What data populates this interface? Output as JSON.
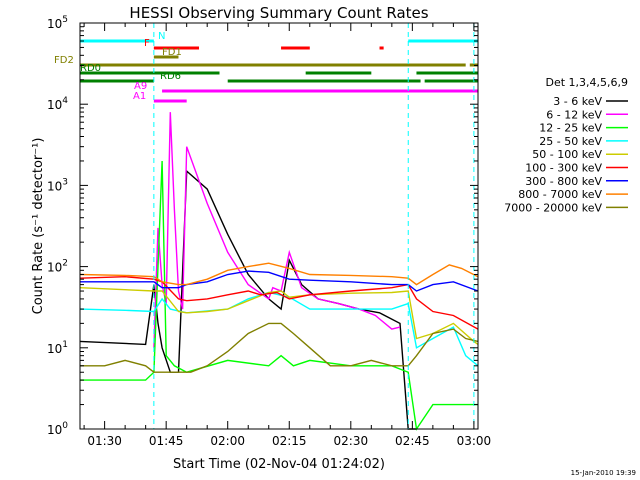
{
  "chart_data": {
    "type": "line",
    "title": "HESSI Observing Summary Count Rates",
    "xlabel": "Start Time (02-Nov-04 01:24:02)",
    "ylabel": "Count Rate (s⁻¹ detector⁻¹)",
    "yscale": "log",
    "ylim": [
      1,
      100000
    ],
    "xlim_minutes": [
      84,
      181
    ],
    "x_ticks": [
      {
        "t": 90,
        "label": "01:30"
      },
      {
        "t": 105,
        "label": "01:45"
      },
      {
        "t": 120,
        "label": "02:00"
      },
      {
        "t": 135,
        "label": "02:15"
      },
      {
        "t": 150,
        "label": "02:30"
      },
      {
        "t": 165,
        "label": "02:45"
      },
      {
        "t": 180,
        "label": "03:00"
      }
    ],
    "y_ticks": [
      {
        "v": 1,
        "base": "10",
        "exp": "0"
      },
      {
        "v": 10,
        "base": "10",
        "exp": "1"
      },
      {
        "v": 100,
        "base": "10",
        "exp": "2"
      },
      {
        "v": 1000,
        "base": "10",
        "exp": "3"
      },
      {
        "v": 10000,
        "base": "10",
        "exp": "4"
      },
      {
        "v": 100000,
        "base": "10",
        "exp": "5"
      }
    ],
    "legend_title": "Det 1,3,4,5,6,9",
    "legend_position": "right",
    "grid": false,
    "series": [
      {
        "name": "3 - 6 keV",
        "color": "#000000",
        "points": [
          [
            84,
            12
          ],
          [
            100,
            11
          ],
          [
            102,
            60
          ],
          [
            103,
            20
          ],
          [
            104,
            10
          ],
          [
            106,
            5
          ],
          [
            108,
            5
          ],
          [
            110,
            1500
          ],
          [
            115,
            900
          ],
          [
            120,
            250
          ],
          [
            125,
            80
          ],
          [
            130,
            40
          ],
          [
            133,
            30
          ],
          [
            135,
            120
          ],
          [
            138,
            60
          ],
          [
            142,
            40
          ],
          [
            147,
            35
          ],
          [
            152,
            30
          ],
          [
            157,
            27
          ],
          [
            162,
            20
          ],
          [
            164,
            1
          ],
          [
            166,
            1
          ]
        ]
      },
      {
        "name": "6 - 12 keV",
        "color": "#ff00ff",
        "points": [
          [
            102,
            10
          ],
          [
            103,
            300
          ],
          [
            104,
            60
          ],
          [
            105,
            35
          ],
          [
            106,
            8000
          ],
          [
            107,
            500
          ],
          [
            108,
            50
          ],
          [
            109,
            30
          ],
          [
            110,
            3000
          ],
          [
            115,
            600
          ],
          [
            120,
            150
          ],
          [
            125,
            60
          ],
          [
            130,
            40
          ],
          [
            131,
            55
          ],
          [
            133,
            50
          ],
          [
            135,
            150
          ],
          [
            138,
            55
          ],
          [
            142,
            40
          ],
          [
            147,
            35
          ],
          [
            152,
            30
          ],
          [
            156,
            25
          ],
          [
            160,
            17
          ],
          [
            162,
            18
          ]
        ]
      },
      {
        "name": "12 - 25 keV",
        "color": "#00ff00",
        "points": [
          [
            84,
            4
          ],
          [
            95,
            4
          ],
          [
            100,
            4
          ],
          [
            102,
            5
          ],
          [
            104,
            2000
          ],
          [
            105,
            8
          ],
          [
            107,
            6
          ],
          [
            110,
            5
          ],
          [
            120,
            7
          ],
          [
            130,
            6
          ],
          [
            133,
            8
          ],
          [
            136,
            6
          ],
          [
            140,
            7
          ],
          [
            150,
            6
          ],
          [
            160,
            6
          ],
          [
            164,
            5
          ],
          [
            166,
            1
          ],
          [
            170,
            2
          ],
          [
            175,
            2
          ],
          [
            181,
            2
          ]
        ]
      },
      {
        "name": "25 - 50 keV",
        "color": "#00ffff",
        "points": [
          [
            84,
            30
          ],
          [
            95,
            29
          ],
          [
            102,
            28
          ],
          [
            104,
            40
          ],
          [
            106,
            30
          ],
          [
            110,
            27
          ],
          [
            120,
            30
          ],
          [
            125,
            40
          ],
          [
            130,
            48
          ],
          [
            135,
            42
          ],
          [
            140,
            30
          ],
          [
            150,
            30
          ],
          [
            160,
            30
          ],
          [
            164,
            35
          ],
          [
            166,
            10
          ],
          [
            170,
            13
          ],
          [
            175,
            18
          ],
          [
            178,
            8
          ],
          [
            181,
            6
          ]
        ]
      },
      {
        "name": "50 - 100 keV",
        "color": "#cccc00",
        "points": [
          [
            84,
            55
          ],
          [
            95,
            52
          ],
          [
            102,
            50
          ],
          [
            104,
            50
          ],
          [
            108,
            28
          ],
          [
            110,
            27
          ],
          [
            115,
            28
          ],
          [
            120,
            30
          ],
          [
            125,
            38
          ],
          [
            130,
            48
          ],
          [
            133,
            50
          ],
          [
            135,
            42
          ],
          [
            140,
            45
          ],
          [
            150,
            47
          ],
          [
            160,
            48
          ],
          [
            164,
            50
          ],
          [
            166,
            13
          ],
          [
            170,
            15
          ],
          [
            175,
            20
          ],
          [
            180,
            12
          ],
          [
            181,
            11
          ]
        ]
      },
      {
        "name": "100 - 300 keV",
        "color": "#ff0000",
        "points": [
          [
            84,
            72
          ],
          [
            95,
            75
          ],
          [
            102,
            70
          ],
          [
            104,
            65
          ],
          [
            108,
            40
          ],
          [
            110,
            38
          ],
          [
            115,
            40
          ],
          [
            120,
            45
          ],
          [
            125,
            50
          ],
          [
            128,
            45
          ],
          [
            132,
            48
          ],
          [
            135,
            40
          ],
          [
            140,
            45
          ],
          [
            150,
            50
          ],
          [
            160,
            55
          ],
          [
            164,
            60
          ],
          [
            166,
            40
          ],
          [
            170,
            28
          ],
          [
            175,
            25
          ],
          [
            181,
            17
          ]
        ]
      },
      {
        "name": "300 - 800 keV",
        "color": "#0000ff",
        "points": [
          [
            84,
            65
          ],
          [
            95,
            65
          ],
          [
            102,
            65
          ],
          [
            104,
            55
          ],
          [
            108,
            55
          ],
          [
            110,
            60
          ],
          [
            115,
            65
          ],
          [
            120,
            80
          ],
          [
            125,
            88
          ],
          [
            130,
            85
          ],
          [
            135,
            70
          ],
          [
            140,
            68
          ],
          [
            150,
            65
          ],
          [
            160,
            60
          ],
          [
            164,
            60
          ],
          [
            166,
            50
          ],
          [
            170,
            60
          ],
          [
            175,
            65
          ],
          [
            181,
            50
          ]
        ]
      },
      {
        "name": "800 - 7000 keV",
        "color": "#ff8000",
        "points": [
          [
            84,
            80
          ],
          [
            95,
            78
          ],
          [
            102,
            75
          ],
          [
            104,
            65
          ],
          [
            108,
            60
          ],
          [
            110,
            60
          ],
          [
            115,
            70
          ],
          [
            120,
            90
          ],
          [
            125,
            100
          ],
          [
            130,
            110
          ],
          [
            135,
            95
          ],
          [
            140,
            80
          ],
          [
            150,
            78
          ],
          [
            160,
            75
          ],
          [
            164,
            72
          ],
          [
            166,
            60
          ],
          [
            170,
            80
          ],
          [
            174,
            105
          ],
          [
            177,
            95
          ],
          [
            181,
            75
          ]
        ]
      },
      {
        "name": "7000 - 20000 keV",
        "color": "#808000",
        "points": [
          [
            84,
            6
          ],
          [
            90,
            6
          ],
          [
            95,
            7
          ],
          [
            100,
            6
          ],
          [
            102,
            5
          ],
          [
            104,
            5
          ],
          [
            106,
            5
          ],
          [
            108,
            5
          ],
          [
            111,
            5
          ],
          [
            115,
            6
          ],
          [
            120,
            9
          ],
          [
            125,
            15
          ],
          [
            130,
            20
          ],
          [
            133,
            20
          ],
          [
            136,
            15
          ],
          [
            140,
            10
          ],
          [
            145,
            6
          ],
          [
            150,
            6
          ],
          [
            155,
            7
          ],
          [
            160,
            6
          ],
          [
            164,
            6
          ],
          [
            166,
            8
          ],
          [
            170,
            15
          ],
          [
            175,
            17
          ],
          [
            178,
            13
          ],
          [
            181,
            12
          ]
        ]
      }
    ],
    "flag_bars": [
      {
        "label": "N",
        "color": "#00ffff",
        "segments": [
          [
            84,
            102
          ],
          [
            164,
            181
          ]
        ]
      },
      {
        "label": "F",
        "color": "#ff0000",
        "segments": [
          [
            102,
            113
          ],
          [
            133,
            140
          ],
          [
            157,
            158
          ]
        ]
      },
      {
        "label": "FD1",
        "color": "#808000",
        "segments": [
          [
            102,
            108
          ]
        ]
      },
      {
        "label": "FD2",
        "color": "#808000",
        "segments": [
          [
            84,
            178
          ],
          [
            179,
            181
          ]
        ]
      },
      {
        "label": "RD0",
        "color": "#008000",
        "segments": [
          [
            84,
            118
          ],
          [
            139,
            155
          ],
          [
            166,
            181
          ]
        ]
      },
      {
        "label": "RD6",
        "color": "#008000",
        "segments": [
          [
            84,
            102
          ],
          [
            120,
            167
          ],
          [
            168,
            181
          ]
        ]
      },
      {
        "label": "A9",
        "color": "#ff00ff",
        "segments": [
          [
            104,
            181
          ]
        ]
      },
      {
        "label": "A1",
        "color": "#ff00ff",
        "segments": [
          [
            102,
            110
          ]
        ]
      }
    ],
    "vertical_lines_minutes": [
      102,
      164,
      180
    ]
  },
  "timestamp": "15-Jan-2010 19:39"
}
